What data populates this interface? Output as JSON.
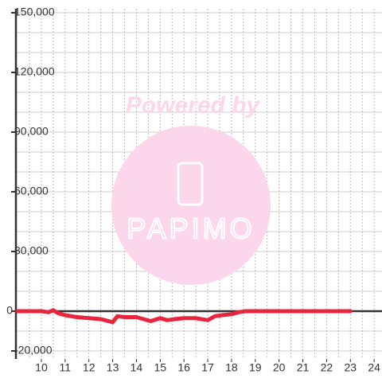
{
  "chart_data": {
    "type": "line",
    "x": [
      9,
      10,
      10.3,
      10.5,
      10.7,
      11,
      11.5,
      12,
      12.5,
      13,
      13.2,
      13.5,
      14,
      14.3,
      14.6,
      15,
      15.3,
      15.6,
      16,
      16.5,
      17,
      17.3,
      17.6,
      18,
      18.3,
      18.6,
      19,
      20,
      21,
      22,
      23
    ],
    "series": [
      {
        "color": "#e8253d",
        "values": [
          0,
          0,
          -500,
          500,
          -1000,
          -2000,
          -3000,
          -3500,
          -4000,
          -5500,
          -2500,
          -3000,
          -3000,
          -4000,
          -5000,
          -3500,
          -4500,
          -4000,
          -3500,
          -3500,
          -4500,
          -2500,
          -2000,
          -1500,
          -500,
          0,
          0,
          0,
          0,
          0,
          0
        ]
      }
    ],
    "xlim": [
      8.93,
      24.33
    ],
    "ylim": [
      -24000,
      152000
    ],
    "xticks": [
      10,
      11,
      12,
      13,
      14,
      15,
      16,
      17,
      18,
      19,
      20,
      21,
      22,
      23,
      24
    ],
    "yticks": [
      {
        "value": 150000,
        "label": "150,000"
      },
      {
        "value": 120000,
        "label": "120,000"
      },
      {
        "value": 90000,
        "label": "90,000"
      },
      {
        "value": 60000,
        "label": "60,000"
      },
      {
        "value": 30000,
        "label": "30,000"
      },
      0,
      {
        "value": -20000,
        "label": "-20,000"
      }
    ],
    "ygrid": [
      -20000,
      -10000,
      10000,
      20000,
      30000,
      40000,
      50000,
      60000,
      70000,
      80000,
      90000,
      100000,
      110000,
      120000,
      130000,
      140000,
      150000
    ],
    "xgrid": [
      9.5,
      10,
      10.5,
      11,
      11.5,
      12,
      12.5,
      13,
      13.5,
      14,
      14.5,
      15,
      15.5,
      16,
      16.5,
      17,
      17.5,
      18,
      18.5,
      19,
      19.5,
      20,
      20.5,
      21,
      21.5,
      22,
      22.5,
      23,
      23.5,
      24
    ],
    "watermark": {
      "text": "Powered by",
      "logo": "PAPIMO"
    }
  }
}
